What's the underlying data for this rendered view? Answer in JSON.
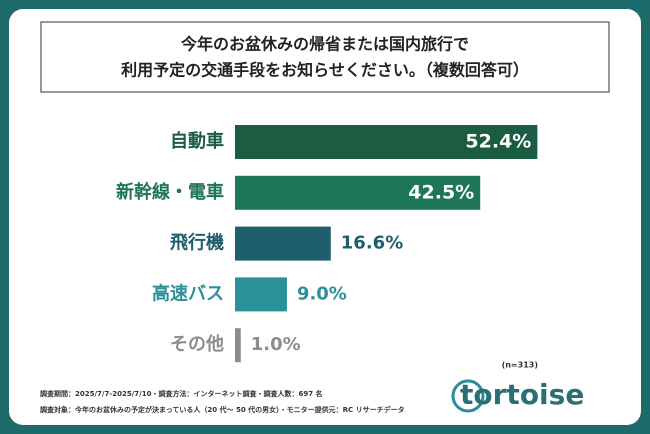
{
  "chart_data": {
    "type": "bar",
    "orientation": "horizontal",
    "title": [
      "今年のお盆休みの帰省または国内旅行で",
      "利用予定の交通手段をお知らせください。（複数回答可）"
    ],
    "categories": [
      "自動車",
      "新幹線・電車",
      "飛行機",
      "高速バス",
      "その他"
    ],
    "values": [
      52.4,
      42.5,
      16.6,
      9.0,
      1.0
    ],
    "value_labels": [
      "52.4%",
      "42.5%",
      "16.6%",
      "9.0%",
      "1.0%"
    ],
    "colors": [
      "#1b5c43",
      "#1f7656",
      "#1e5f6e",
      "#2a9099",
      "#8c8c8c"
    ],
    "sample_note": "(n=313)",
    "footnotes": [
      "調査期間：2025/7/7-2025/7/10・調査方法：インターネット調査・調査人数：697 名",
      "調査対象：今年のお盆休みの予定が決まっている人（20 代〜 50 代の男女）・モニター提供元：RC リサーチデータ"
    ],
    "logo": "tortoise"
  }
}
